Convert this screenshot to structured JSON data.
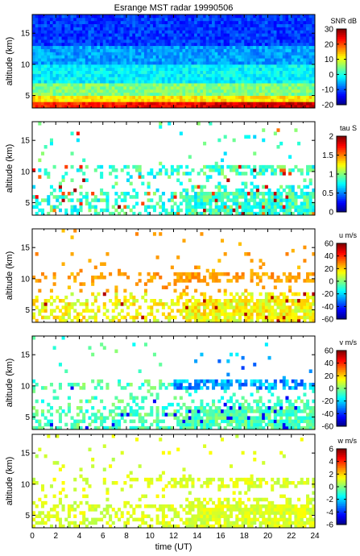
{
  "chart_data": [
    {
      "type": "heatmap",
      "title": "Esrange MST radar 19990506",
      "ylabel": "altitude (km)",
      "xlabel": "",
      "xlim": [
        0,
        24
      ],
      "ylim": [
        3,
        18
      ],
      "yticks": [
        5,
        10,
        15
      ],
      "xticks": [],
      "colorbar": {
        "label": "SNR dB",
        "range": [
          -20,
          30
        ],
        "ticks": [
          -20,
          -10,
          0,
          10,
          20,
          30
        ]
      },
      "field": "snr",
      "fill": "dense"
    },
    {
      "type": "heatmap",
      "title": "",
      "ylabel": "altitude (km)",
      "xlabel": "",
      "xlim": [
        0,
        24
      ],
      "ylim": [
        3,
        18
      ],
      "yticks": [
        5,
        10,
        15
      ],
      "xticks": [],
      "colorbar": {
        "label": "tau S",
        "range": [
          0,
          2
        ],
        "ticks": [
          0,
          0.5,
          1,
          1.5,
          2
        ]
      },
      "field": "tau",
      "fill": "sparse"
    },
    {
      "type": "heatmap",
      "title": "",
      "ylabel": "altitude (km)",
      "xlabel": "",
      "xlim": [
        0,
        24
      ],
      "ylim": [
        3,
        18
      ],
      "yticks": [
        5,
        10,
        15
      ],
      "xticks": [],
      "colorbar": {
        "label": "u m/s",
        "range": [
          -60,
          60
        ],
        "ticks": [
          -60,
          -40,
          -20,
          0,
          20,
          40,
          60
        ]
      },
      "field": "u",
      "fill": "sparse"
    },
    {
      "type": "heatmap",
      "title": "",
      "ylabel": "altitude (km)",
      "xlabel": "",
      "xlim": [
        0,
        24
      ],
      "ylim": [
        3,
        18
      ],
      "yticks": [
        5,
        10,
        15
      ],
      "xticks": [],
      "colorbar": {
        "label": "v m/s",
        "range": [
          -60,
          60
        ],
        "ticks": [
          -60,
          -40,
          -20,
          0,
          20,
          40,
          60
        ]
      },
      "field": "v",
      "fill": "sparse"
    },
    {
      "type": "heatmap",
      "title": "",
      "ylabel": "altitude (km)",
      "xlabel": "time (UT)",
      "xlim": [
        0,
        24
      ],
      "ylim": [
        3,
        18
      ],
      "yticks": [
        5,
        10,
        15
      ],
      "xticks": [
        0,
        2,
        4,
        6,
        8,
        10,
        12,
        14,
        16,
        18,
        20,
        22,
        24
      ],
      "colorbar": {
        "label": "w m/s",
        "range": [
          -6,
          6
        ],
        "ticks": [
          -6,
          -4,
          -2,
          0,
          2,
          4,
          6
        ]
      },
      "field": "w",
      "fill": "sparse"
    }
  ]
}
